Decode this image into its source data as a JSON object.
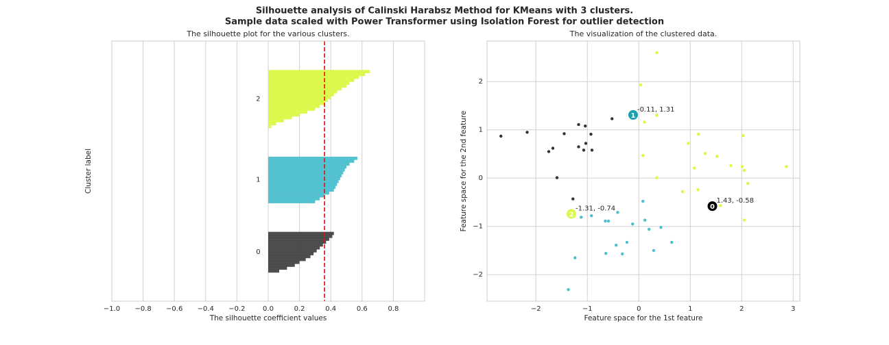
{
  "title": "Silhouette analysis of Calinski Harabsz Method for KMeans with 3 clusters.",
  "subtitle": "Sample data scaled with Power Transformer using Isolation Forest for outlier detection",
  "chart_data": [
    {
      "type": "silhouette",
      "title": "The silhouette plot for the various clusters.",
      "xlabel": "The silhouette coefficient values",
      "ylabel": "Cluster label",
      "xlim": [
        -1,
        1
      ],
      "xticks": [
        {
          "value": -1.0,
          "label": "−1.0"
        },
        {
          "value": -0.8,
          "label": "−0.8"
        },
        {
          "value": -0.6,
          "label": "−0.6"
        },
        {
          "value": -0.4,
          "label": "−0.4"
        },
        {
          "value": -0.2,
          "label": "−0.2"
        },
        {
          "value": 0,
          "label": "0.0"
        },
        0.2,
        0.4,
        0.6,
        0.8
      ],
      "ylim": [
        0,
        90
      ],
      "grid": true,
      "reference_line": {
        "value": 0.36,
        "color": "#ff0000"
      },
      "series": [
        {
          "name": "0",
          "color": "#454545",
          "values": [
            0.07,
            0.12,
            0.17,
            0.2,
            0.24,
            0.27,
            0.29,
            0.31,
            0.33,
            0.35,
            0.37,
            0.39,
            0.41,
            0.42
          ]
        },
        {
          "name": "1",
          "color": "#4bbfcf",
          "values": [
            0.3,
            0.33,
            0.36,
            0.39,
            0.42,
            0.43,
            0.44,
            0.45,
            0.46,
            0.47,
            0.48,
            0.49,
            0.5,
            0.52,
            0.55,
            0.57
          ]
        },
        {
          "name": "2",
          "color": "#d9f944",
          "values": [
            0.02,
            0.05,
            0.1,
            0.15,
            0.2,
            0.25,
            0.3,
            0.33,
            0.36,
            0.38,
            0.4,
            0.42,
            0.44,
            0.47,
            0.5,
            0.52,
            0.55,
            0.58,
            0.62,
            0.65
          ]
        }
      ]
    },
    {
      "type": "scatter",
      "title": "The visualization of the clustered data.",
      "xlabel": "Feature space for the 1st feature",
      "ylabel": "Feature space for the 2nd feature",
      "xlim": [
        -2.95,
        3.13
      ],
      "ylim": [
        -2.55,
        2.84
      ],
      "xticks": [
        {
          "value": -2,
          "label": "−2"
        },
        {
          "value": -1,
          "label": "−1"
        },
        0,
        1,
        2,
        3
      ],
      "yticks": [
        {
          "value": -2,
          "label": "−2"
        },
        {
          "value": -1,
          "label": "−1"
        },
        0,
        1,
        2
      ],
      "grid": true,
      "series": [
        {
          "color": "#333333",
          "x": [
            -2.68,
            -2.17,
            -1.75,
            -1.67,
            -1.59,
            -1.45,
            -1.17,
            -1.04,
            -1.03,
            -1.17,
            -1.07,
            -0.93,
            -0.91,
            -0.52,
            -1.28
          ],
          "y": [
            0.87,
            0.95,
            0.55,
            0.62,
            0.01,
            0.92,
            1.11,
            1.08,
            0.72,
            0.65,
            0.58,
            0.91,
            0.58,
            1.23,
            -0.43
          ]
        },
        {
          "color": "#4bbfcf",
          "x": [
            0.08,
            0.12,
            -0.12,
            -0.41,
            -0.65,
            -0.59,
            -0.92,
            -1.12,
            0.2,
            0.43,
            0.64,
            -0.23,
            -0.44,
            -0.64,
            -0.32,
            0.29,
            -1.24,
            -1.37
          ],
          "y": [
            -0.48,
            -0.87,
            -0.95,
            -0.71,
            -0.89,
            -0.89,
            -0.78,
            -0.81,
            -1.06,
            -1.02,
            -1.33,
            -1.33,
            -1.39,
            -1.56,
            -1.57,
            -1.5,
            -1.65,
            -2.31
          ]
        },
        {
          "color": "#d9f944",
          "x": [
            0.35,
            0.04,
            0.35,
            0.11,
            1.16,
            0.96,
            2.03,
            1.29,
            1.52,
            0.08,
            1.08,
            1.79,
            2.01,
            2.05,
            2.87,
            0.35,
            2.12,
            1.15,
            0.85,
            1.59,
            2.05
          ],
          "y": [
            2.6,
            1.93,
            1.3,
            1.16,
            0.91,
            0.72,
            0.88,
            0.51,
            0.45,
            0.47,
            0.21,
            0.26,
            0.24,
            0.16,
            0.24,
            0.01,
            -0.11,
            -0.24,
            -0.28,
            -0.57,
            -0.87
          ]
        }
      ],
      "centers": [
        {
          "label": "0",
          "x": 1.43,
          "y": -0.58,
          "annotation": "1.43, -0.58",
          "color": "#000000"
        },
        {
          "label": "1",
          "x": -0.11,
          "y": 1.31,
          "annotation": "-0.11, 1.31",
          "color": "#1a9fb0"
        },
        {
          "label": "2",
          "x": -1.31,
          "y": -0.74,
          "annotation": "-1.31, -0.74",
          "color": "#d9f944"
        }
      ]
    }
  ]
}
